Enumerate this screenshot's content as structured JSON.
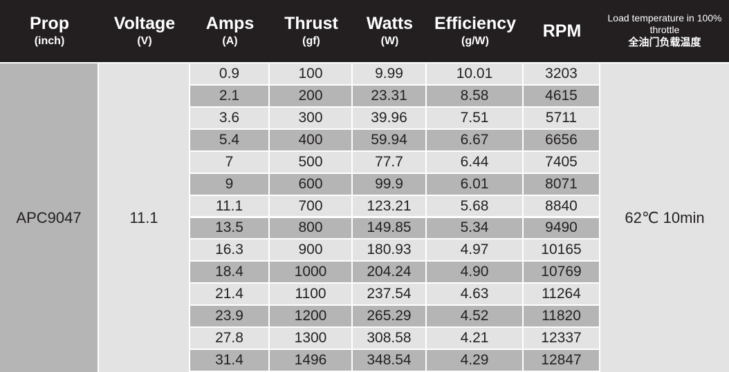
{
  "header": [
    {
      "title": "Prop",
      "unit": "(inch)"
    },
    {
      "title": "Voltage",
      "unit": "(V)"
    },
    {
      "title": "Amps",
      "unit": "(A)"
    },
    {
      "title": "Thrust",
      "unit": "(gf)"
    },
    {
      "title": "Watts",
      "unit": "(W)"
    },
    {
      "title": "Efficiency",
      "unit": "(g/W)"
    },
    {
      "title": "RPM"
    },
    {
      "title": "Load temperature in 100% throttle",
      "unit": "全油门负载温度"
    }
  ],
  "prop": "APC9047",
  "voltage": "11.1",
  "load_temperature": "62℃ 10min",
  "rows": [
    [
      "0.9",
      "100",
      "9.99",
      "10.01",
      "3203"
    ],
    [
      "2.1",
      "200",
      "23.31",
      "8.58",
      "4615"
    ],
    [
      "3.6",
      "300",
      "39.96",
      "7.51",
      "5711"
    ],
    [
      "5.4",
      "400",
      "59.94",
      "6.67",
      "6656"
    ],
    [
      "7",
      "500",
      "77.7",
      "6.44",
      "7405"
    ],
    [
      "9",
      "600",
      "99.9",
      "6.01",
      "8071"
    ],
    [
      "11.1",
      "700",
      "123.21",
      "5.68",
      "8840"
    ],
    [
      "13.5",
      "800",
      "149.85",
      "5.34",
      "9490"
    ],
    [
      "16.3",
      "900",
      "180.93",
      "4.97",
      "10165"
    ],
    [
      "18.4",
      "1000",
      "204.24",
      "4.90",
      "10769"
    ],
    [
      "21.4",
      "1100",
      "237.54",
      "4.63",
      "11264"
    ],
    [
      "23.9",
      "1200",
      "265.29",
      "4.52",
      "11820"
    ],
    [
      "27.8",
      "1300",
      "308.58",
      "4.21",
      "12337"
    ],
    [
      "31.4",
      "1496",
      "348.54",
      "4.29",
      "12847"
    ]
  ]
}
